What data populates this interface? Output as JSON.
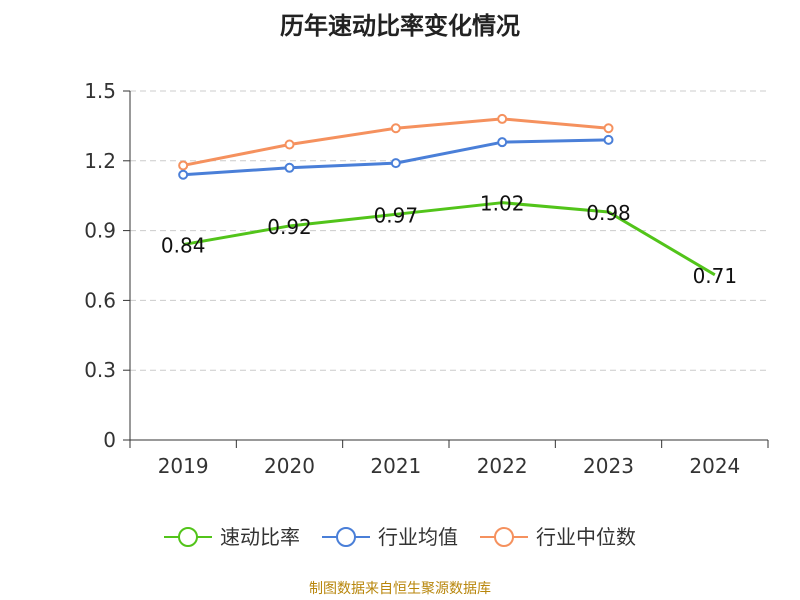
{
  "title": "历年速动比率变化情况",
  "source_note": "制图数据来自恒生聚源数据库",
  "chart_data": {
    "type": "line",
    "title": "历年速动比率变化情况",
    "categories": [
      "2019",
      "2020",
      "2021",
      "2022",
      "2023",
      "2024"
    ],
    "ylim": [
      0,
      1.5
    ],
    "yticks": [
      0,
      0.3,
      0.6,
      0.9,
      1.2,
      1.5
    ],
    "ytick_labels": [
      "0",
      "0.3",
      "0.6",
      "0.9",
      "1.2",
      "1.5"
    ],
    "grid": true,
    "legend_position": "bottom",
    "series": [
      {
        "name": "速动比率",
        "color": "#52c41a",
        "values": [
          0.84,
          0.92,
          0.97,
          1.02,
          0.98,
          0.71
        ],
        "labels": [
          "0.84",
          "0.92",
          "0.97",
          "1.02",
          "0.98",
          "0.71"
        ]
      },
      {
        "name": "行业均值",
        "color": "#4a7fd8",
        "values": [
          1.14,
          1.17,
          1.19,
          1.28,
          1.29,
          null
        ]
      },
      {
        "name": "行业中位数",
        "color": "#f5915e",
        "values": [
          1.18,
          1.27,
          1.34,
          1.38,
          1.34,
          null
        ]
      }
    ]
  }
}
